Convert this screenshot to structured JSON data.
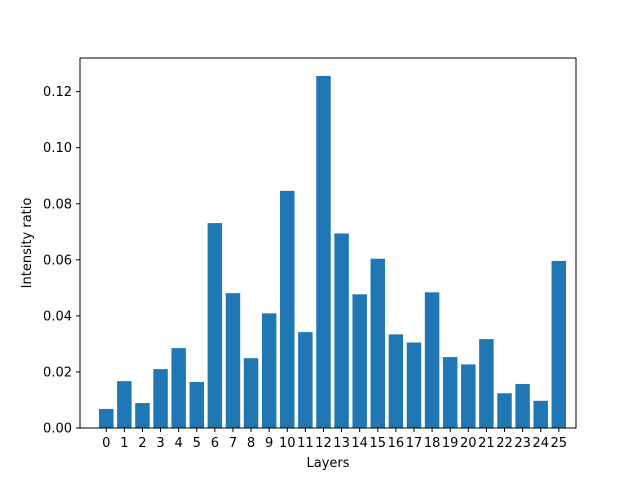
{
  "chart_data": {
    "type": "bar",
    "title": "",
    "xlabel": "Layers",
    "ylabel": "Intensity ratio",
    "categories": [
      "0",
      "1",
      "2",
      "3",
      "4",
      "5",
      "6",
      "7",
      "8",
      "9",
      "10",
      "11",
      "12",
      "13",
      "14",
      "15",
      "16",
      "17",
      "18",
      "19",
      "20",
      "21",
      "22",
      "23",
      "24",
      "25"
    ],
    "values": [
      0.0068,
      0.0167,
      0.0089,
      0.021,
      0.0285,
      0.0164,
      0.0731,
      0.0481,
      0.0249,
      0.0409,
      0.0846,
      0.0342,
      0.1256,
      0.0694,
      0.0477,
      0.0604,
      0.0334,
      0.0305,
      0.0484,
      0.0253,
      0.0227,
      0.0317,
      0.0124,
      0.0157,
      0.0097,
      0.0596
    ],
    "yticks": [
      "0.00",
      "0.02",
      "0.04",
      "0.06",
      "0.08",
      "0.10",
      "0.12"
    ],
    "ylim": [
      0,
      0.132
    ],
    "grid": false,
    "bar_color": "#1f77b4"
  }
}
